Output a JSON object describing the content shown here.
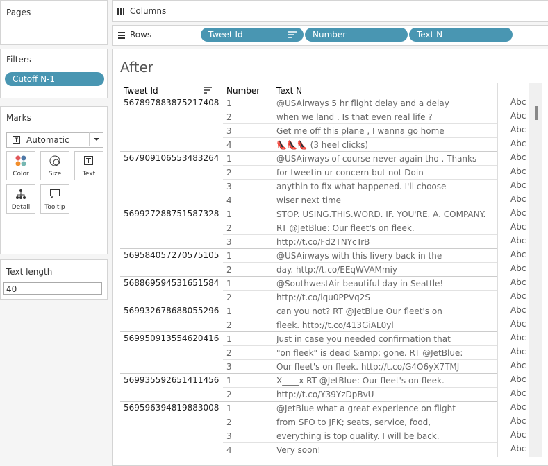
{
  "left": {
    "pages_title": "Pages",
    "filters_title": "Filters",
    "filter_pill": "Cutoff N-1",
    "marks_title": "Marks",
    "mark_type": "Automatic",
    "mark_buttons": [
      "Color",
      "Size",
      "Text",
      "Detail",
      "Tooltip"
    ],
    "parameter_title": "Text length",
    "parameter_value": "40"
  },
  "shelves": {
    "columns_label": "Columns",
    "rows_label": "Rows",
    "rows_pills": [
      "Tweet Id",
      "Number",
      "Text N"
    ]
  },
  "view": {
    "title": "After",
    "headers": [
      "Tweet Id",
      "Number",
      "Text N"
    ],
    "cell_placeholder": "Abc",
    "groups": [
      {
        "id": "567897883875217408",
        "rows": [
          {
            "number": 1,
            "text": "@USAirways 5 hr flight delay and a delay"
          },
          {
            "number": 2,
            "text": "when we land . Is that even real life ?"
          },
          {
            "number": 3,
            "text": "Get me off this plane , I wanna go home"
          },
          {
            "number": 4,
            "text": "👠👠👠 (3 heel clicks)"
          }
        ]
      },
      {
        "id": "567909106553483264",
        "rows": [
          {
            "number": 1,
            "text": "@USAirways of course never again tho . Thanks"
          },
          {
            "number": 2,
            "text": "for tweetin ur concern but not Doin"
          },
          {
            "number": 3,
            "text": "anythin to fix what happened. I'll choose"
          },
          {
            "number": 4,
            "text": "wiser next time"
          }
        ]
      },
      {
        "id": "569927288751587328",
        "rows": [
          {
            "number": 1,
            "text": "STOP. USING.THIS.WORD. IF. YOU'RE. A. COMPANY."
          },
          {
            "number": 2,
            "text": "RT @JetBlue: Our fleet's on fleek."
          },
          {
            "number": 3,
            "text": "http://t.co/Fd2TNYcTrB"
          }
        ]
      },
      {
        "id": "569584057270575105",
        "rows": [
          {
            "number": 1,
            "text": "@USAirways with this livery back in the"
          },
          {
            "number": 2,
            "text": "day. http://t.co/EEqWVAMmiy"
          }
        ]
      },
      {
        "id": "568869594531651584",
        "rows": [
          {
            "number": 1,
            "text": "@SouthwestAir beautiful day in Seattle!"
          },
          {
            "number": 2,
            "text": "http://t.co/iqu0PPVq2S"
          }
        ]
      },
      {
        "id": "569932678688055296",
        "rows": [
          {
            "number": 1,
            "text": "can you not? RT @JetBlue Our fleet's on"
          },
          {
            "number": 2,
            "text": "fleek. http://t.co/413GiAL0yl"
          }
        ]
      },
      {
        "id": "569950913554620416",
        "rows": [
          {
            "number": 1,
            "text": "Just in case you needed confirmation that"
          },
          {
            "number": 2,
            "text": "\"on fleek\" is dead &amp; gone. RT @JetBlue:"
          },
          {
            "number": 3,
            "text": "Our fleet's on fleek. http://t.co/G4O6yX7TMJ"
          }
        ]
      },
      {
        "id": "569935592651411456",
        "rows": [
          {
            "number": 1,
            "text": "X____x RT @JetBlue: Our fleet's on fleek."
          },
          {
            "number": 2,
            "text": "http://t.co/Y39YzDpBvU"
          }
        ]
      },
      {
        "id": "569596394819883008",
        "rows": [
          {
            "number": 1,
            "text": "@JetBlue what a great experience on flight"
          },
          {
            "number": 2,
            "text": "from SFO to JFK; seats, service, food,"
          },
          {
            "number": 3,
            "text": "everything is top quality. I will be back."
          },
          {
            "number": 4,
            "text": "Very soon!"
          }
        ]
      }
    ]
  }
}
